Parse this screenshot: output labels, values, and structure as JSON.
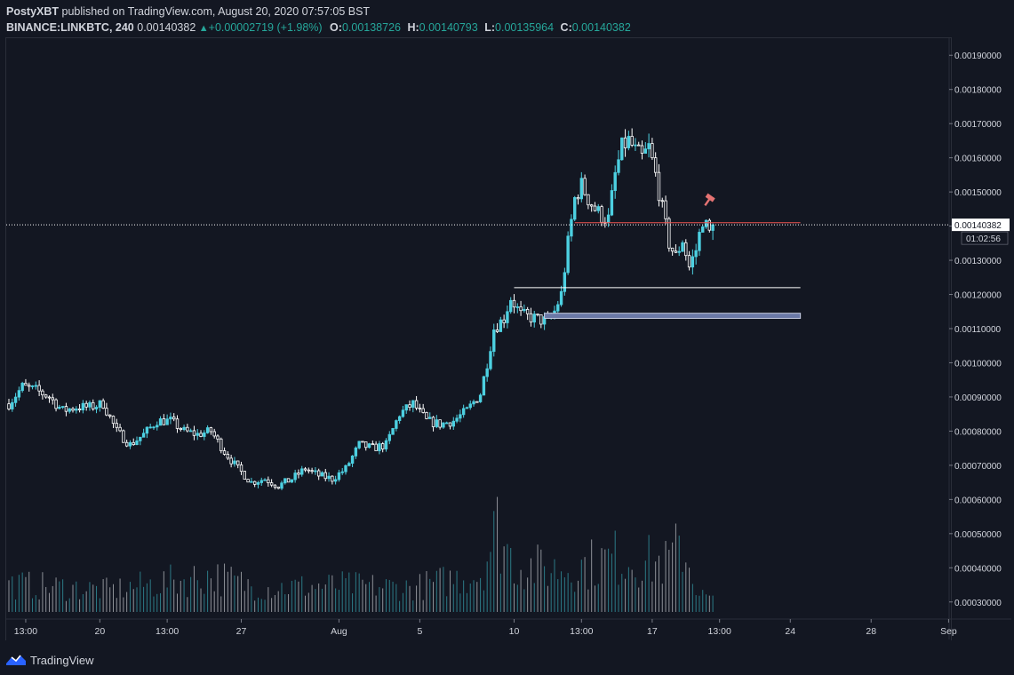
{
  "header": {
    "publisher": "PostyXBT",
    "published_text": "published on TradingView.com, August 20, 2020 07:57:05 BST",
    "symbol": "BINANCE:LINKBTC, 240",
    "last_price": "0.00140382",
    "change": "+0.00002719 (+1.98%)",
    "open_label": "O:",
    "open": "0.00138726",
    "high_label": "H:",
    "high": "0.00140793",
    "low_label": "L:",
    "low": "0.00135964",
    "close_label": "C:",
    "close": "0.00140382"
  },
  "footer": {
    "brand": "TradingView"
  },
  "colors": {
    "background": "#131722",
    "up": "#4dd0e1",
    "down": "#ffffff",
    "volume_up": "#2c7a86",
    "volume_down": "#8e9198",
    "resistance_line": "#ef5350",
    "text": "#d1d4dc",
    "grid_border": "#2a2e39"
  },
  "chart_data": {
    "type": "candlestick",
    "symbol": "BINANCE:LINKBTC",
    "interval": "240",
    "ylim": [
      0.00025,
      0.00195
    ],
    "y_ticks": [
      "0.00190000",
      "0.00180000",
      "0.00170000",
      "0.00160000",
      "0.00150000",
      "0.00140000",
      "0.00130000",
      "0.00120000",
      "0.00110000",
      "0.00100000",
      "0.00090000",
      "0.00080000",
      "0.00070000",
      "0.00060000",
      "0.00050000",
      "0.00040000",
      "0.00030000"
    ],
    "x_ticks": [
      {
        "label": "13:00",
        "bar": 5
      },
      {
        "label": "20",
        "bar": 27
      },
      {
        "label": "13:00",
        "bar": 47
      },
      {
        "label": "27",
        "bar": 69
      },
      {
        "label": "Aug",
        "bar": 98
      },
      {
        "label": "5",
        "bar": 122
      },
      {
        "label": "10",
        "bar": 150
      },
      {
        "label": "13:00",
        "bar": 170
      },
      {
        "label": "17",
        "bar": 191
      },
      {
        "label": "13:00",
        "bar": 211
      },
      {
        "label": "24",
        "bar": 232
      },
      {
        "label": "28",
        "bar": 256
      },
      {
        "label": "Sep",
        "bar": 279
      }
    ],
    "last_price_label": "0.00140382",
    "countdown_label": "01:02:56",
    "last_price": 0.00140382,
    "close_path": [
      [
        0,
        0.00088
      ],
      [
        4,
        0.00093
      ],
      [
        8,
        0.00092
      ],
      [
        12,
        0.0009
      ],
      [
        16,
        0.00086
      ],
      [
        20,
        0.00087
      ],
      [
        24,
        0.00087
      ],
      [
        28,
        0.00088
      ],
      [
        32,
        0.0008
      ],
      [
        36,
        0.00076
      ],
      [
        40,
        0.00079
      ],
      [
        44,
        0.00083
      ],
      [
        48,
        0.00083
      ],
      [
        52,
        0.0008
      ],
      [
        56,
        0.00079
      ],
      [
        60,
        0.0008
      ],
      [
        64,
        0.00074
      ],
      [
        68,
        0.00069
      ],
      [
        72,
        0.00065
      ],
      [
        76,
        0.00066
      ],
      [
        80,
        0.00064
      ],
      [
        84,
        0.00066
      ],
      [
        88,
        0.00069
      ],
      [
        92,
        0.00067
      ],
      [
        96,
        0.00066
      ],
      [
        100,
        0.00069
      ],
      [
        104,
        0.00076
      ],
      [
        108,
        0.00075
      ],
      [
        112,
        0.00076
      ],
      [
        116,
        0.00085
      ],
      [
        120,
        0.00088
      ],
      [
        124,
        0.00083
      ],
      [
        128,
        0.00082
      ],
      [
        132,
        0.00083
      ],
      [
        136,
        0.00086
      ],
      [
        140,
        0.00091
      ],
      [
        142,
        0.001
      ],
      [
        144,
        0.0011
      ],
      [
        147,
        0.00113
      ],
      [
        149,
        0.00119
      ],
      [
        152,
        0.00114
      ],
      [
        156,
        0.00113
      ],
      [
        160,
        0.00112
      ],
      [
        162,
        0.00115
      ],
      [
        164,
        0.0012
      ],
      [
        166,
        0.00135
      ],
      [
        168,
        0.00148
      ],
      [
        170,
        0.00152
      ],
      [
        172,
        0.00148
      ],
      [
        174,
        0.00145
      ],
      [
        176,
        0.00143
      ],
      [
        178,
        0.00142
      ],
      [
        180,
        0.00155
      ],
      [
        182,
        0.00163
      ],
      [
        184,
        0.00165
      ],
      [
        186,
        0.00162
      ],
      [
        188,
        0.0016
      ],
      [
        190,
        0.00163
      ],
      [
        192,
        0.00155
      ],
      [
        194,
        0.00145
      ],
      [
        196,
        0.00135
      ],
      [
        198,
        0.00131
      ],
      [
        200,
        0.00136
      ],
      [
        202,
        0.00128
      ],
      [
        204,
        0.00133
      ],
      [
        206,
        0.00142
      ],
      [
        208,
        0.00138
      ],
      [
        209,
        0.0014
      ]
    ],
    "volume_path": [
      [
        0,
        0.23
      ],
      [
        30,
        0.18
      ],
      [
        60,
        0.3
      ],
      [
        75,
        0.2
      ],
      [
        100,
        0.22
      ],
      [
        120,
        0.2
      ],
      [
        140,
        0.32
      ],
      [
        145,
        0.7
      ],
      [
        150,
        0.4
      ],
      [
        160,
        0.35
      ],
      [
        170,
        0.38
      ],
      [
        180,
        0.45
      ],
      [
        195,
        0.4
      ],
      [
        200,
        0.55
      ],
      [
        205,
        0.15
      ],
      [
        209,
        0.1
      ]
    ],
    "annotations": {
      "resistance_line": {
        "price": 0.00141,
        "from_bar": 168,
        "to_bar": 235
      },
      "support_line": {
        "price": 0.00122,
        "from_bar": 150,
        "to_bar": 235
      },
      "support_zone": {
        "price_top": 0.001145,
        "price_bottom": 0.00113,
        "from_bar": 159,
        "to_bar": 235
      },
      "low_marker_bar": 200
    }
  }
}
